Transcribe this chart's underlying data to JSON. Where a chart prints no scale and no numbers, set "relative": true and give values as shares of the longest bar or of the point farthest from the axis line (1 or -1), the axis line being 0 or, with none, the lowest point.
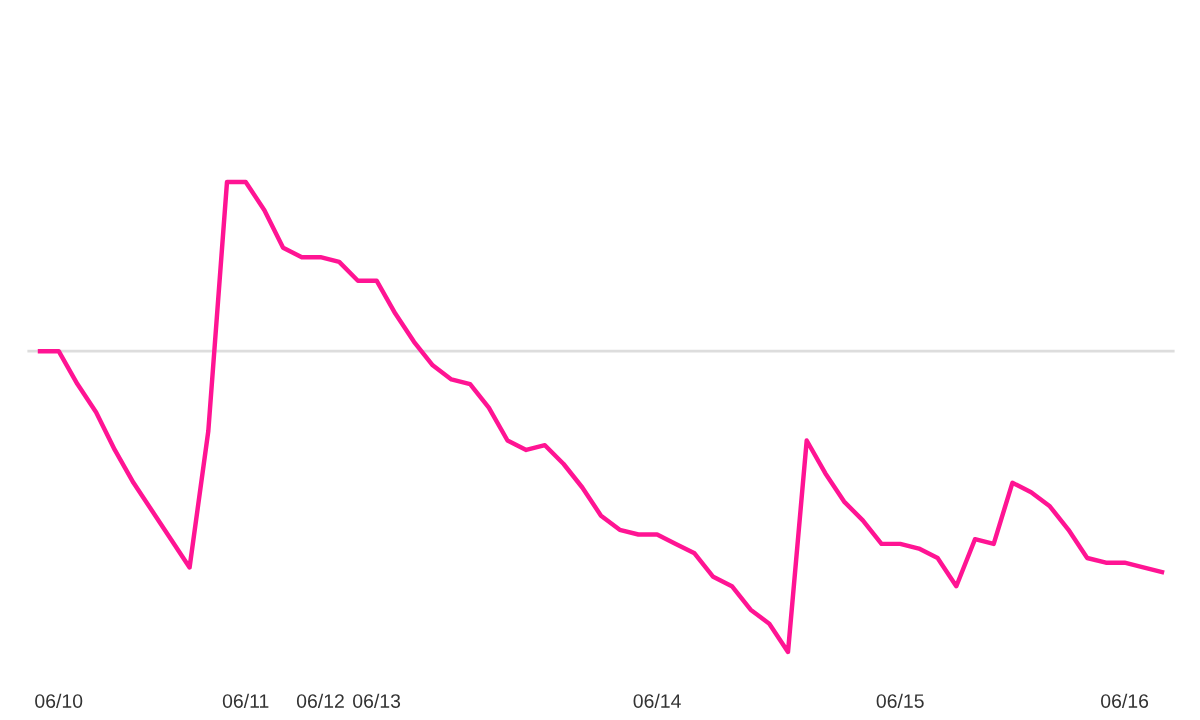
{
  "chart_data": {
    "type": "line",
    "relative": true,
    "grid": false,
    "legend": false,
    "marker": "none",
    "line_style": "solid",
    "categories": [
      null,
      "06/10",
      null,
      null,
      null,
      null,
      null,
      null,
      null,
      null,
      null,
      "06/11",
      null,
      null,
      null,
      "06/12",
      null,
      null,
      "06/13",
      null,
      null,
      null,
      null,
      null,
      null,
      null,
      null,
      null,
      null,
      null,
      null,
      null,
      null,
      "06/14",
      null,
      null,
      null,
      null,
      null,
      null,
      null,
      null,
      null,
      null,
      null,
      null,
      "06/15",
      null,
      null,
      null,
      null,
      null,
      null,
      null,
      null,
      null,
      null,
      null,
      "06/16",
      null,
      null
    ],
    "series": [
      {
        "color": "#ff1493",
        "values": [
          0.64,
          0.64,
          0.57,
          0.51,
          0.43,
          0.36,
          0.3,
          0.24,
          0.18,
          0.47,
          1,
          1,
          0.94,
          0.86,
          0.84,
          0.84,
          0.83,
          0.79,
          0.79,
          0.72,
          0.66,
          0.61,
          0.58,
          0.57,
          0.52,
          0.45,
          0.43,
          0.44,
          0.4,
          0.35,
          0.29,
          0.26,
          0.25,
          0.25,
          0.23,
          0.21,
          0.16,
          0.14,
          0.09,
          0.06,
          0,
          0.45,
          0.38,
          0.32,
          0.28,
          0.23,
          0.23,
          0.22,
          0.2,
          0.14,
          0.24,
          0.23,
          0.36,
          0.34,
          0.31,
          0.26,
          0.2,
          0.19,
          0.19,
          0.18,
          0.17
        ]
      }
    ],
    "ref_lines": [
      {
        "axis": "y",
        "value": 0.64,
        "color": "#dddddd"
      }
    ]
  }
}
